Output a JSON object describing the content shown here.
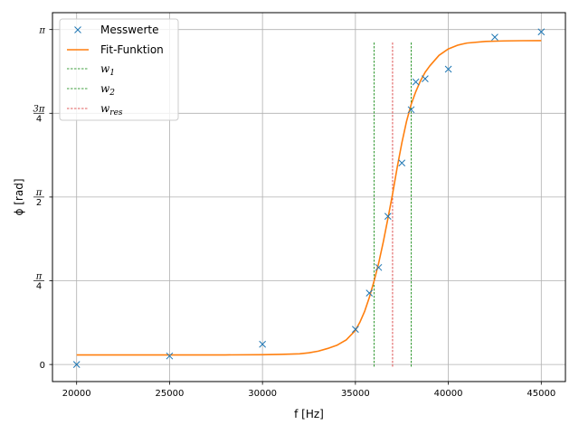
{
  "chart_data": {
    "type": "scatter",
    "title": "",
    "xlabel": "f [Hz]",
    "ylabel": "ϕ [rad]",
    "xlim": [
      18700,
      46300
    ],
    "ylim": [
      -0.16,
      3.3
    ],
    "grid": true,
    "legend_position": "top-left",
    "x_ticks": [
      {
        "value": 20000,
        "label": "20000"
      },
      {
        "value": 25000,
        "label": "25000"
      },
      {
        "value": 30000,
        "label": "30000"
      },
      {
        "value": 35000,
        "label": "35000"
      },
      {
        "value": 40000,
        "label": "40000"
      },
      {
        "value": 45000,
        "label": "45000"
      }
    ],
    "y_ticks": [
      {
        "value": 0,
        "label": "0",
        "num": "",
        "den": ""
      },
      {
        "value": 0.7854,
        "label": "",
        "num": "π",
        "den": "4"
      },
      {
        "value": 1.5708,
        "label": "",
        "num": "π",
        "den": "2"
      },
      {
        "value": 2.3562,
        "label": "",
        "num": "3π",
        "den": "4"
      },
      {
        "value": 3.1416,
        "label": "π",
        "num": "",
        "den": ""
      }
    ],
    "series": [
      {
        "name": "Messwerte",
        "kind": "scatter",
        "marker": "x",
        "color": "#1f77b4",
        "points": [
          [
            20000,
            0.0
          ],
          [
            25000,
            0.08
          ],
          [
            30000,
            0.19
          ],
          [
            35000,
            0.33
          ],
          [
            35750,
            0.67
          ],
          [
            36250,
            0.91
          ],
          [
            36750,
            1.39
          ],
          [
            37500,
            1.89
          ],
          [
            38000,
            2.39
          ],
          [
            38250,
            2.65
          ],
          [
            38750,
            2.68
          ],
          [
            40000,
            2.77
          ],
          [
            42500,
            3.07
          ],
          [
            45000,
            3.12
          ]
        ]
      },
      {
        "name": "Fit-Funktion",
        "kind": "line",
        "color": "#ff7f0e",
        "x": [
          20000,
          22000,
          24000,
          26000,
          28000,
          30000,
          31000,
          32000,
          32500,
          33000,
          33500,
          34000,
          34500,
          35000,
          35250,
          35500,
          35750,
          36000,
          36250,
          36500,
          36750,
          37000,
          37250,
          37500,
          37750,
          38000,
          38250,
          38500,
          38750,
          39000,
          39500,
          40000,
          40500,
          41000,
          42000,
          43000,
          44000,
          45000
        ],
        "y": [
          0.09,
          0.09,
          0.09,
          0.09,
          0.09,
          0.092,
          0.095,
          0.1,
          0.11,
          0.125,
          0.15,
          0.18,
          0.23,
          0.32,
          0.4,
          0.5,
          0.63,
          0.78,
          0.95,
          1.15,
          1.37,
          1.6,
          1.85,
          2.08,
          2.28,
          2.44,
          2.56,
          2.66,
          2.74,
          2.8,
          2.9,
          2.96,
          2.995,
          3.015,
          3.03,
          3.035,
          3.037,
          3.038
        ]
      },
      {
        "name": "w_1",
        "name_base": "w",
        "name_sub": "1",
        "kind": "vline",
        "color": "#008000",
        "x": 36000,
        "y_range": [
          -0.02,
          3.02
        ]
      },
      {
        "name": "w_2",
        "name_base": "w",
        "name_sub": "2",
        "kind": "vline",
        "color": "#008000",
        "x": 38000,
        "y_range": [
          -0.02,
          3.02
        ]
      },
      {
        "name": "w_res",
        "name_base": "w",
        "name_sub": "res",
        "kind": "vline",
        "color": "#d62728",
        "x": 37000,
        "y_range": [
          -0.02,
          3.02
        ]
      }
    ]
  }
}
